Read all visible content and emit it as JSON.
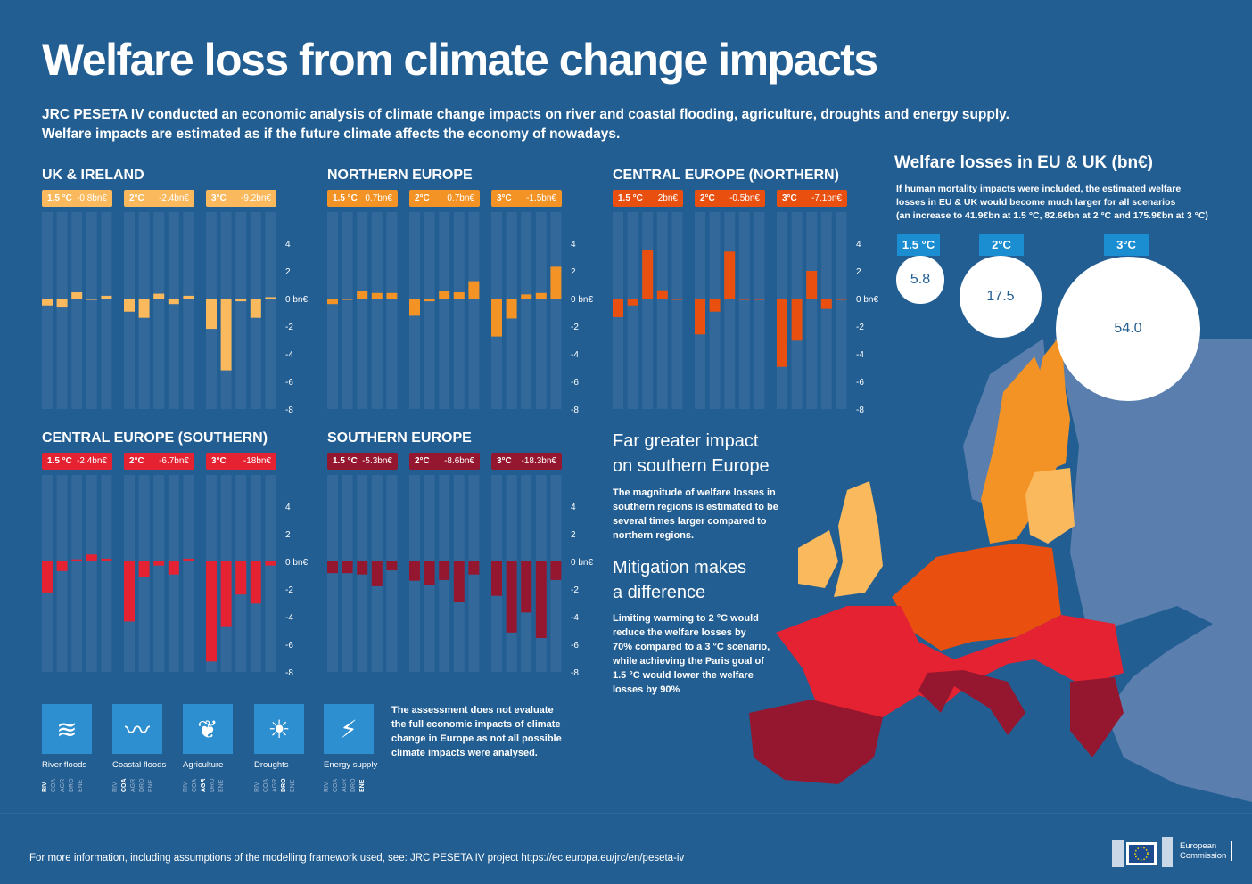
{
  "title": "Welfare loss from climate change impacts",
  "intro": [
    "JRC PESETA IV conducted an economic analysis of climate change impacts on river and coastal flooding, agriculture, droughts and energy supply.",
    "Welfare impacts are estimated as if the future climate affects the economy of nowadays."
  ],
  "chart_data": [
    {
      "type": "bar",
      "title": "UK & IRELAND",
      "color": "#f9b95c",
      "categories": [
        "RIV",
        "COA",
        "AGR",
        "DRO",
        "ENE"
      ],
      "ylabel": "bn€",
      "ylim": [
        -8,
        4
      ],
      "yticks": [
        "4",
        "2",
        "0 bn€",
        "-2",
        "-4",
        "-6",
        "-8"
      ],
      "series": [
        {
          "name": "1.5 °C",
          "total": "-0.8bn€",
          "values": [
            -0.5,
            -0.65,
            0.45,
            -0.1,
            0.2
          ]
        },
        {
          "name": "2°C",
          "total": "-2.4bn€",
          "values": [
            -0.95,
            -1.4,
            0.35,
            -0.4,
            0.2
          ]
        },
        {
          "name": "3°C",
          "total": "-9.2bn€",
          "values": [
            -2.2,
            -5.2,
            -0.2,
            -1.4,
            0.1
          ]
        }
      ]
    },
    {
      "type": "bar",
      "title": "NORTHERN EUROPE",
      "color": "#f39325",
      "categories": [
        "RIV",
        "COA",
        "AGR",
        "DRO",
        "ENE"
      ],
      "ylabel": "bn€",
      "ylim": [
        -8,
        4
      ],
      "yticks": [
        "4",
        "2",
        "0 bn€",
        "-2",
        "-4",
        "-6",
        "-8"
      ],
      "series": [
        {
          "name": "1.5 °C",
          "total": "0.7bn€",
          "values": [
            -0.4,
            -0.1,
            0.55,
            0.4,
            0.4
          ]
        },
        {
          "name": "2°C",
          "total": "0.7bn€",
          "values": [
            -1.25,
            -0.2,
            0.55,
            0.45,
            1.25
          ]
        },
        {
          "name": "3°C",
          "total": "-1.5bn€",
          "values": [
            -2.75,
            -1.45,
            0.3,
            0.4,
            2.3
          ]
        }
      ]
    },
    {
      "type": "bar",
      "title": "CENTRAL EUROPE (NORTHERN)",
      "color": "#e9500f",
      "categories": [
        "RIV",
        "COA",
        "AGR",
        "DRO",
        "ENE"
      ],
      "ylabel": "bn€",
      "ylim": [
        -8,
        4
      ],
      "yticks": [
        "4",
        "2",
        "0 bn€",
        "-2",
        "-4",
        "-6",
        "-8"
      ],
      "series": [
        {
          "name": "1.5 °C",
          "total": "2bn€",
          "values": [
            -1.35,
            -0.5,
            3.55,
            0.6,
            -0.1
          ]
        },
        {
          "name": "2°C",
          "total": "-0.5bn€",
          "values": [
            -2.6,
            -0.95,
            3.4,
            -0.1,
            -0.1
          ]
        },
        {
          "name": "3°C",
          "total": "-7.1bn€",
          "values": [
            -4.95,
            -3.05,
            2.0,
            -0.75,
            -0.1
          ]
        }
      ]
    },
    {
      "type": "bar",
      "title": "CENTRAL EUROPE (SOUTHERN)",
      "color": "#e42232",
      "categories": [
        "RIV",
        "COA",
        "AGR",
        "DRO",
        "ENE"
      ],
      "ylabel": "bn€",
      "ylim": [
        -8,
        4
      ],
      "yticks": [
        "4",
        "2",
        "0 bn€",
        "-2",
        "-4",
        "-6",
        "-8"
      ],
      "series": [
        {
          "name": "1.5 °C",
          "total": "-2.4bn€",
          "values": [
            -2.25,
            -0.7,
            0.15,
            0.5,
            0.2
          ]
        },
        {
          "name": "2°C",
          "total": "-6.7bn€",
          "values": [
            -4.35,
            -1.15,
            -0.3,
            -0.95,
            0.2
          ]
        },
        {
          "name": "3°C",
          "total": "-18bn€",
          "values": [
            -7.25,
            -4.75,
            -2.4,
            -3.05,
            -0.3
          ]
        }
      ]
    },
    {
      "type": "bar",
      "title": "SOUTHERN  EUROPE",
      "color": "#95172f",
      "categories": [
        "RIV",
        "COA",
        "AGR",
        "DRO",
        "ENE"
      ],
      "ylabel": "bn€",
      "ylim": [
        -8,
        4
      ],
      "yticks": [
        "4",
        "2",
        "0 bn€",
        "-2",
        "-4",
        "-6",
        "-8"
      ],
      "series": [
        {
          "name": "1.5 °C",
          "total": "-5.3bn€",
          "values": [
            -0.85,
            -0.85,
            -0.95,
            -1.8,
            -0.65
          ]
        },
        {
          "name": "2°C",
          "total": "-8.6bn€",
          "values": [
            -1.4,
            -1.7,
            -1.35,
            -2.95,
            -0.95
          ]
        },
        {
          "name": "3°C",
          "total": "-18.3bn€",
          "values": [
            -2.5,
            -5.15,
            -3.7,
            -5.55,
            -1.35
          ]
        }
      ]
    },
    {
      "type": "bubble",
      "title": "Welfare losses in EU & UK (bn€)",
      "categories": [
        "1.5 °C",
        "2°C",
        "3°C"
      ],
      "values": [
        5.8,
        17.5,
        54.0
      ],
      "labels": [
        "5.8",
        "17.5",
        "54.0"
      ]
    }
  ],
  "side": {
    "h1": [
      "Far greater impact",
      "on southern Europe"
    ],
    "p1": [
      "The magnitude of welfare losses in",
      "southern regions is estimated to be",
      "several times larger compared to",
      "northern regions."
    ],
    "h2": [
      "Mitigation makes",
      "a difference"
    ],
    "p2": [
      "Limiting warming to 2 °C would",
      "reduce the welfare losses by",
      "70% compared to a 3 °C scenario,",
      "while achieving the Paris goal of",
      "1.5 °C would lower the welfare",
      "losses by 90%"
    ]
  },
  "map": {
    "title": "Welfare losses in EU & UK (bn€)",
    "note": [
      "If human mortality impacts were included, the estimated welfare",
      "losses in EU & UK would become much larger for all scenarios",
      "(an increase to 41.9€bn at 1.5 °C, 82.6€bn at 2 °C and 175.9€bn at 3 °C)"
    ],
    "colors": {
      "sea": "#225e92",
      "land": "#5a7fae",
      "uk": "#f9b95c",
      "north": "#f39325",
      "cen_n": "#e9500f",
      "cen_s": "#e42232",
      "south": "#95172f"
    }
  },
  "legend": [
    {
      "label": "River floods",
      "icon": "river-flood-icon",
      "active": 0
    },
    {
      "label": "Coastal floods",
      "icon": "coastal-flood-icon",
      "active": 1
    },
    {
      "label": "Agriculture",
      "icon": "agriculture-icon",
      "active": 2
    },
    {
      "label": "Droughts",
      "icon": "drought-icon",
      "active": 3
    },
    {
      "label": "Energy supply",
      "icon": "energy-supply-icon",
      "active": 4
    }
  ],
  "abbrs": [
    "RIV",
    "COA",
    "AGR",
    "DRO",
    "ENE"
  ],
  "note": [
    "The assessment does not evaluate",
    "the full economic impacts of climate",
    "change in Europe as not all possible",
    "climate impacts were analysed."
  ],
  "footer": {
    "text": "For more information, including assumptions of the modelling framework used, see: JRC PESETA IV project https://ec.europa.eu/jrc/en/peseta-iv",
    "logo": [
      "European",
      "Commission"
    ]
  }
}
